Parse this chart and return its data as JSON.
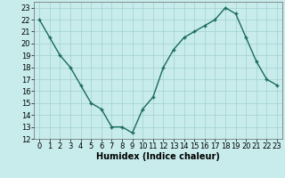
{
  "x": [
    0,
    1,
    2,
    3,
    4,
    5,
    6,
    7,
    8,
    9,
    10,
    11,
    12,
    13,
    14,
    15,
    16,
    17,
    18,
    19,
    20,
    21,
    22,
    23
  ],
  "y": [
    22,
    20.5,
    19,
    18,
    16.5,
    15,
    14.5,
    13,
    13,
    12.5,
    14.5,
    15.5,
    18,
    19.5,
    20.5,
    21,
    21.5,
    22,
    23,
    22.5,
    20.5,
    18.5,
    17,
    16.5
  ],
  "line_color": "#1a6b5a",
  "marker": "+",
  "marker_size": 3,
  "background_color": "#c8ecec",
  "grid_color": "#a0d0d0",
  "xlabel": "Humidex (Indice chaleur)",
  "xlabel_fontsize": 7,
  "ylim": [
    12,
    23.5
  ],
  "xlim": [
    -0.5,
    23.5
  ],
  "yticks": [
    12,
    13,
    14,
    15,
    16,
    17,
    18,
    19,
    20,
    21,
    22,
    23
  ],
  "xticks": [
    0,
    1,
    2,
    3,
    4,
    5,
    6,
    7,
    8,
    9,
    10,
    11,
    12,
    13,
    14,
    15,
    16,
    17,
    18,
    19,
    20,
    21,
    22,
    23
  ],
  "tick_fontsize": 6,
  "line_width": 1.0
}
